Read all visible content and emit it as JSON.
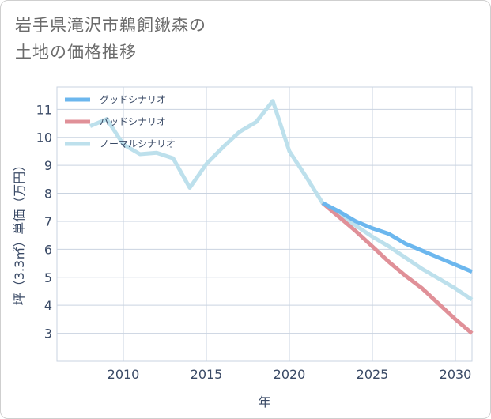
{
  "title_line1": "岩手県滝沢市鵜飼鍬森の",
  "title_line2": "土地の価格推移",
  "chart_data": {
    "type": "line",
    "xlabel": "年",
    "ylabel": "坪（3.3㎡）単価（万円）",
    "xlim": [
      2006,
      2031
    ],
    "ylim": [
      2,
      11.8
    ],
    "xticks": [
      2010,
      2015,
      2020,
      2025,
      2030
    ],
    "yticks": [
      3,
      4,
      5,
      6,
      7,
      8,
      9,
      10,
      11
    ],
    "grid": true,
    "legend_position": "top-left",
    "series": [
      {
        "name": "グッドシナリオ",
        "color": "#6cb7ee",
        "x": [
          2022,
          2023,
          2024,
          2025,
          2026,
          2027,
          2028,
          2029,
          2030,
          2031
        ],
        "y": [
          7.65,
          7.35,
          7.0,
          6.75,
          6.55,
          6.2,
          5.95,
          5.7,
          5.45,
          5.2
        ]
      },
      {
        "name": "バッドシナリオ",
        "color": "#e09098",
        "x": [
          2022,
          2023,
          2024,
          2025,
          2026,
          2027,
          2028,
          2029,
          2030,
          2031
        ],
        "y": [
          7.65,
          7.15,
          6.65,
          6.1,
          5.55,
          5.05,
          4.6,
          4.05,
          3.5,
          3.0
        ]
      },
      {
        "name": "ノーマルシナリオ",
        "color": "#bde0ec",
        "x": [
          2008,
          2009,
          2010,
          2011,
          2012,
          2013,
          2014,
          2015,
          2016,
          2017,
          2018,
          2019,
          2020,
          2021,
          2022,
          2023,
          2024,
          2025,
          2026,
          2027,
          2028,
          2029,
          2030,
          2031
        ],
        "y": [
          10.4,
          10.65,
          9.75,
          9.4,
          9.45,
          9.25,
          8.2,
          9.05,
          9.65,
          10.2,
          10.55,
          11.3,
          9.5,
          8.6,
          7.65,
          7.25,
          6.85,
          6.45,
          6.1,
          5.7,
          5.3,
          4.95,
          4.6,
          4.2
        ]
      }
    ]
  }
}
